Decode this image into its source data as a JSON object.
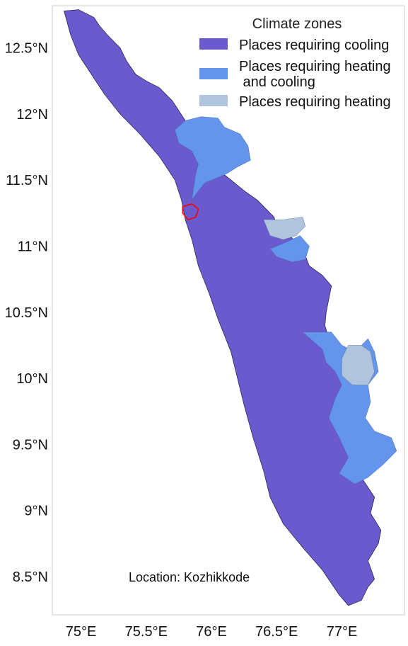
{
  "chart_data": {
    "type": "choropleth-map",
    "x_axis": {
      "ticks": [
        {
          "value": 75.0,
          "label": "75°E"
        },
        {
          "value": 75.5,
          "label": "75.5°E"
        },
        {
          "value": 76.0,
          "label": "76°E"
        },
        {
          "value": 76.5,
          "label": "76.5°E"
        },
        {
          "value": 77.0,
          "label": "77°E"
        }
      ],
      "range": [
        74.78,
        77.48
      ]
    },
    "y_axis": {
      "ticks": [
        {
          "value": 12.5,
          "label": "12.5°N"
        },
        {
          "value": 12.0,
          "label": "12°N"
        },
        {
          "value": 11.5,
          "label": "11.5°N"
        },
        {
          "value": 11.0,
          "label": "11°N"
        },
        {
          "value": 10.5,
          "label": "10.5°N"
        },
        {
          "value": 10.0,
          "label": "10°N"
        },
        {
          "value": 9.5,
          "label": "9.5°N"
        },
        {
          "value": 9.0,
          "label": "9°N"
        },
        {
          "value": 8.5,
          "label": "8.5°N"
        }
      ],
      "range": [
        8.21,
        12.82
      ]
    },
    "grid": false,
    "legend": {
      "title": "Climate zones",
      "placement": "top-right",
      "entries": [
        {
          "label_lines": [
            "Places requiring cooling"
          ],
          "color": "#6a5acd"
        },
        {
          "label_lines": [
            "Places requiring heating",
            " and cooling"
          ],
          "color": "#6495ed"
        },
        {
          "label_lines": [
            "Places requiring heating"
          ],
          "color": "#b0c4de"
        }
      ]
    },
    "annotation": "Location: Kozhikkode",
    "highlight_color": "#ff0000",
    "zones": {
      "cooling": [
        [
          74.87,
          12.78
        ],
        [
          74.98,
          12.79
        ],
        [
          75.04,
          12.76
        ],
        [
          75.1,
          12.73
        ],
        [
          75.14,
          12.67
        ],
        [
          75.2,
          12.6
        ],
        [
          75.3,
          12.5
        ],
        [
          75.35,
          12.4
        ],
        [
          75.42,
          12.3
        ],
        [
          75.5,
          12.25
        ],
        [
          75.6,
          12.2
        ],
        [
          75.7,
          12.1
        ],
        [
          75.8,
          11.95
        ],
        [
          75.9,
          11.88
        ],
        [
          76.0,
          11.9
        ],
        [
          76.05,
          11.72
        ],
        [
          76.05,
          11.58
        ],
        [
          76.15,
          11.5
        ],
        [
          76.25,
          11.42
        ],
        [
          76.35,
          11.35
        ],
        [
          76.42,
          11.28
        ],
        [
          76.48,
          11.22
        ],
        [
          76.5,
          11.15
        ],
        [
          76.58,
          11.1
        ],
        [
          76.7,
          10.98
        ],
        [
          76.75,
          10.85
        ],
        [
          76.85,
          10.78
        ],
        [
          76.92,
          10.7
        ],
        [
          76.9,
          10.6
        ],
        [
          76.88,
          10.5
        ],
        [
          76.87,
          10.4
        ],
        [
          76.9,
          10.3
        ],
        [
          76.95,
          10.15
        ],
        [
          77.05,
          10.1
        ],
        [
          77.1,
          10.0
        ],
        [
          77.05,
          9.9
        ],
        [
          76.95,
          9.82
        ],
        [
          76.92,
          9.7
        ],
        [
          76.98,
          9.6
        ],
        [
          77.05,
          9.48
        ],
        [
          77.1,
          9.35
        ],
        [
          77.15,
          9.25
        ],
        [
          77.25,
          9.1
        ],
        [
          77.22,
          8.98
        ],
        [
          77.3,
          8.85
        ],
        [
          77.28,
          8.75
        ],
        [
          77.2,
          8.62
        ],
        [
          77.25,
          8.48
        ],
        [
          77.2,
          8.42
        ],
        [
          77.15,
          8.32
        ],
        [
          77.05,
          8.28
        ],
        [
          76.98,
          8.36
        ],
        [
          76.85,
          8.55
        ],
        [
          76.7,
          8.72
        ],
        [
          76.55,
          8.9
        ],
        [
          76.45,
          9.1
        ],
        [
          76.4,
          9.3
        ],
        [
          76.32,
          9.55
        ],
        [
          76.25,
          9.8
        ],
        [
          76.2,
          10.0
        ],
        [
          76.15,
          10.2
        ],
        [
          76.05,
          10.45
        ],
        [
          75.98,
          10.65
        ],
        [
          75.9,
          10.85
        ],
        [
          75.85,
          11.05
        ],
        [
          75.8,
          11.2
        ],
        [
          75.77,
          11.35
        ],
        [
          75.72,
          11.5
        ],
        [
          75.6,
          11.68
        ],
        [
          75.45,
          11.85
        ],
        [
          75.3,
          12.0
        ],
        [
          75.18,
          12.15
        ],
        [
          75.08,
          12.3
        ],
        [
          74.98,
          12.45
        ],
        [
          74.92,
          12.6
        ],
        [
          74.87,
          12.78
        ]
      ],
      "heating_and_cooling": [
        [
          [
            75.8,
            11.95
          ],
          [
            75.92,
            11.98
          ],
          [
            76.05,
            11.97
          ],
          [
            76.1,
            11.9
          ],
          [
            76.22,
            11.85
          ],
          [
            76.28,
            11.76
          ],
          [
            76.3,
            11.65
          ],
          [
            76.2,
            11.6
          ],
          [
            76.12,
            11.55
          ],
          [
            76.05,
            11.52
          ],
          [
            75.95,
            11.48
          ],
          [
            75.9,
            11.42
          ],
          [
            75.85,
            11.35
          ],
          [
            75.88,
            11.55
          ],
          [
            75.9,
            11.62
          ],
          [
            75.85,
            11.72
          ],
          [
            75.75,
            11.78
          ],
          [
            75.72,
            11.88
          ],
          [
            75.8,
            11.95
          ]
        ],
        [
          [
            76.55,
            11.02
          ],
          [
            76.68,
            11.08
          ],
          [
            76.75,
            11.0
          ],
          [
            76.72,
            10.9
          ],
          [
            76.62,
            10.88
          ],
          [
            76.5,
            10.92
          ],
          [
            76.45,
            10.98
          ],
          [
            76.55,
            11.02
          ]
        ],
        [
          [
            76.7,
            10.35
          ],
          [
            76.92,
            10.35
          ],
          [
            77.0,
            10.25
          ],
          [
            77.1,
            10.2
          ],
          [
            77.2,
            10.3
          ],
          [
            77.25,
            10.2
          ],
          [
            77.28,
            10.05
          ],
          [
            77.2,
            9.95
          ],
          [
            77.22,
            9.82
          ],
          [
            77.18,
            9.7
          ],
          [
            77.25,
            9.6
          ],
          [
            77.38,
            9.55
          ],
          [
            77.42,
            9.45
          ],
          [
            77.32,
            9.35
          ],
          [
            77.2,
            9.25
          ],
          [
            77.1,
            9.2
          ],
          [
            76.98,
            9.28
          ],
          [
            77.05,
            9.4
          ],
          [
            76.98,
            9.55
          ],
          [
            76.9,
            9.7
          ],
          [
            76.95,
            9.85
          ],
          [
            77.0,
            9.95
          ],
          [
            76.95,
            10.05
          ],
          [
            76.88,
            10.12
          ],
          [
            76.85,
            10.22
          ],
          [
            76.7,
            10.35
          ]
        ]
      ],
      "heating": [
        [
          [
            76.4,
            11.2
          ],
          [
            76.55,
            11.2
          ],
          [
            76.7,
            11.22
          ],
          [
            76.72,
            11.15
          ],
          [
            76.65,
            11.08
          ],
          [
            76.55,
            11.05
          ],
          [
            76.45,
            11.08
          ],
          [
            76.4,
            11.2
          ]
        ],
        [
          [
            77.05,
            10.25
          ],
          [
            77.15,
            10.25
          ],
          [
            77.22,
            10.2
          ],
          [
            77.25,
            10.05
          ],
          [
            77.2,
            9.95
          ],
          [
            77.08,
            9.95
          ],
          [
            77.0,
            10.02
          ],
          [
            77.0,
            10.15
          ],
          [
            77.05,
            10.25
          ]
        ]
      ],
      "highlight_kozhikode": [
        [
          75.78,
          11.3
        ],
        [
          75.85,
          11.32
        ],
        [
          75.9,
          11.28
        ],
        [
          75.88,
          11.22
        ],
        [
          75.82,
          11.2
        ],
        [
          75.78,
          11.25
        ],
        [
          75.78,
          11.3
        ]
      ]
    }
  }
}
